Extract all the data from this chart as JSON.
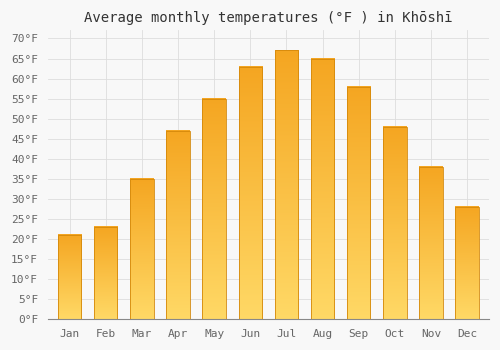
{
  "title": "Average monthly temperatures (°F ) in Khōshī",
  "months": [
    "Jan",
    "Feb",
    "Mar",
    "Apr",
    "May",
    "Jun",
    "Jul",
    "Aug",
    "Sep",
    "Oct",
    "Nov",
    "Dec"
  ],
  "values": [
    21,
    23,
    35,
    47,
    55,
    63,
    67,
    65,
    58,
    48,
    38,
    28
  ],
  "bar_color_top": "#F5A623",
  "bar_color_bottom": "#FFD966",
  "bar_edge_color": "#D4880A",
  "background_color": "#f8f8f8",
  "plot_bg_color": "#f8f8f8",
  "ylim": [
    0,
    72
  ],
  "yticks": [
    0,
    5,
    10,
    15,
    20,
    25,
    30,
    35,
    40,
    45,
    50,
    55,
    60,
    65,
    70
  ],
  "ytick_labels": [
    "0°F",
    "5°F",
    "10°F",
    "15°F",
    "20°F",
    "25°F",
    "30°F",
    "35°F",
    "40°F",
    "45°F",
    "50°F",
    "55°F",
    "60°F",
    "65°F",
    "70°F"
  ],
  "grid_color": "#dddddd",
  "title_fontsize": 10,
  "tick_fontsize": 8,
  "figsize": [
    5.0,
    3.5
  ],
  "dpi": 100,
  "bar_width": 0.65
}
